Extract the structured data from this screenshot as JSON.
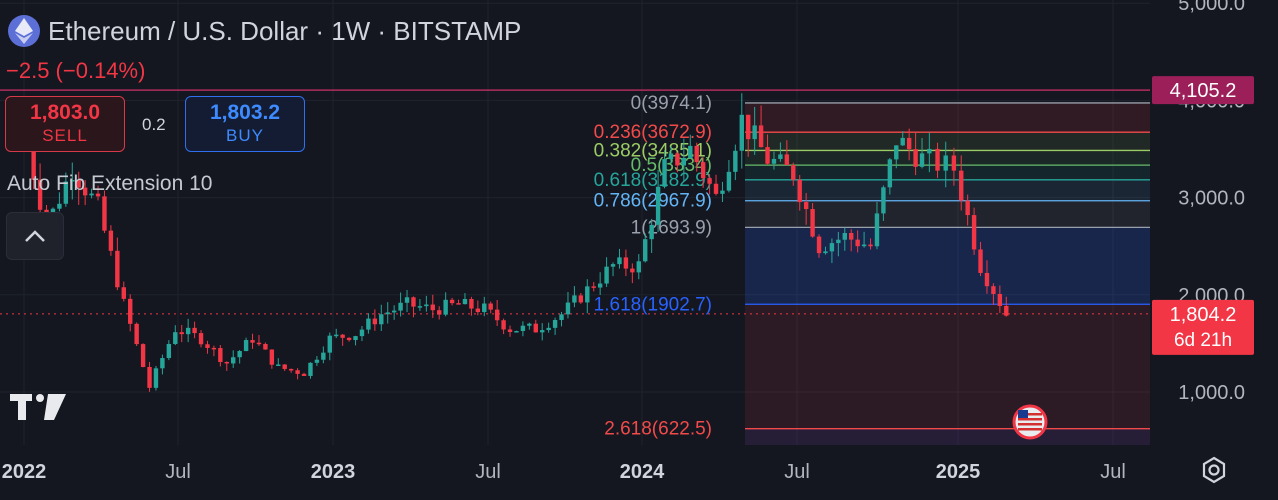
{
  "header": {
    "symbol_title": "Ethereum / U.S. Dollar · 1W · BITSTAMP",
    "change": "−2.5 (−0.14%)",
    "icon": "ethereum-icon"
  },
  "trade": {
    "sell_price": "1,803.0",
    "sell_label": "SELL",
    "spread": "0.2",
    "buy_price": "1,803.2",
    "buy_label": "BUY"
  },
  "indicator": {
    "name": "Auto Fib Extension 10"
  },
  "chart_data": {
    "type": "candlestick",
    "title": "Ethereum / U.S. Dollar · 1W · BITSTAMP",
    "ylim": [
      500,
      5100
    ],
    "y_ticks": [
      1000,
      2000,
      3000,
      4000,
      5000
    ],
    "y_tick_labels": [
      "1,000.0",
      "2,000.0",
      "3,000.0",
      "4,000.0",
      "5,000.0"
    ],
    "x_tick_labels": [
      "2022",
      "Jul",
      "2023",
      "Jul",
      "2024",
      "Jul",
      "2025",
      "Jul"
    ],
    "price_series": [
      [
        "2022-01",
        3800
      ],
      [
        "2022-02",
        2700
      ],
      [
        "2022-03",
        3300
      ],
      [
        "2022-04",
        2900
      ],
      [
        "2022-05",
        1900
      ],
      [
        "2022-06",
        1050
      ],
      [
        "2022-07",
        1650
      ],
      [
        "2022-08",
        1550
      ],
      [
        "2022-09",
        1300
      ],
      [
        "2022-10",
        1550
      ],
      [
        "2022-11",
        1250
      ],
      [
        "2022-12",
        1200
      ],
      [
        "2023-01",
        1550
      ],
      [
        "2023-02",
        1600
      ],
      [
        "2023-03",
        1800
      ],
      [
        "2023-04",
        1900
      ],
      [
        "2023-05",
        1850
      ],
      [
        "2023-06",
        1900
      ],
      [
        "2023-07",
        1850
      ],
      [
        "2023-08",
        1650
      ],
      [
        "2023-09",
        1650
      ],
      [
        "2023-10",
        1800
      ],
      [
        "2023-11",
        2050
      ],
      [
        "2023-12",
        2300
      ],
      [
        "2024-01",
        2300
      ],
      [
        "2024-02",
        3300
      ],
      [
        "2024-03",
        3500
      ],
      [
        "2024-04",
        3000
      ],
      [
        "2024-05",
        3800
      ],
      [
        "2024-06",
        3400
      ],
      [
        "2024-07",
        3250
      ],
      [
        "2024-08",
        2500
      ],
      [
        "2024-09",
        2600
      ],
      [
        "2024-10",
        2500
      ],
      [
        "2024-11",
        3600
      ],
      [
        "2024-12",
        3400
      ],
      [
        "2025-01",
        3300
      ],
      [
        "2025-02",
        2300
      ],
      [
        "2025-03",
        1800
      ]
    ],
    "fib_levels": [
      {
        "label": "0(3974.1)",
        "value": 3974.1,
        "color": "#9aa0ab"
      },
      {
        "label": "0.236(3672.9)",
        "value": 3672.9,
        "color": "#f24a4a"
      },
      {
        "label": "0.382(3485.1)",
        "value": 3485.1,
        "color": "#9ccc65"
      },
      {
        "label": "0.5(3334)",
        "value": 3334,
        "color": "#66bb6a"
      },
      {
        "label": "0.618(3182.9)",
        "value": 3182.9,
        "color": "#26a69a"
      },
      {
        "label": "0.786(2967.9)",
        "value": 2967.9,
        "color": "#64b5f6"
      },
      {
        "label": "1(2693.9)",
        "value": 2693.9,
        "color": "#9aa0ab"
      },
      {
        "label": "1.618(1902.7)",
        "value": 1902.7,
        "color": "#2962ff"
      },
      {
        "label": "2.618(622.5)",
        "value": 622.5,
        "color": "#f24a4a"
      }
    ],
    "price_labels": {
      "high_line": "4,105.2",
      "current": "1,804.2",
      "countdown": "6d 21h"
    },
    "high_value": 4105.2,
    "current_value": 1804.2
  },
  "colors": {
    "up": "#26a69a",
    "down": "#f23645",
    "background": "#141720"
  }
}
